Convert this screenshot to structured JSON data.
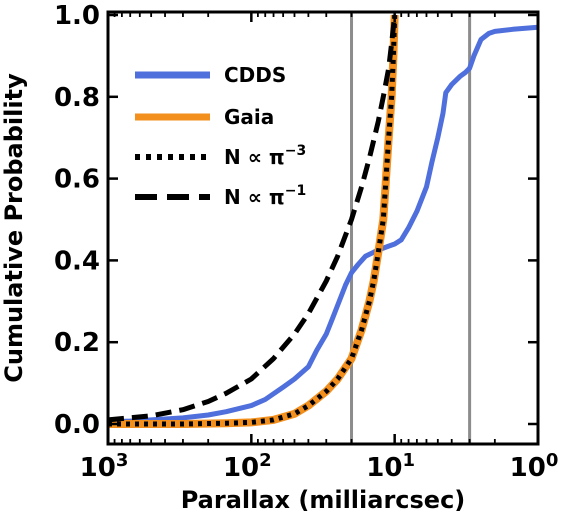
{
  "chart_data": {
    "type": "line",
    "xlabel": "Parallax (milliarcsec)",
    "ylabel": "Cumulative Probability",
    "x_scale": "log",
    "x_reversed": true,
    "xlim": [
      1000,
      1
    ],
    "ylim": [
      0,
      1.0
    ],
    "x_ticks": [
      {
        "value": 1000,
        "base": "10",
        "exp": "3"
      },
      {
        "value": 100,
        "base": "10",
        "exp": "2"
      },
      {
        "value": 10,
        "base": "10",
        "exp": "1"
      },
      {
        "value": 1,
        "base": "10",
        "exp": "0"
      }
    ],
    "y_ticks": [
      {
        "value": 0.0,
        "label": "0.0"
      },
      {
        "value": 0.2,
        "label": "0.2"
      },
      {
        "value": 0.4,
        "label": "0.4"
      },
      {
        "value": 0.6,
        "label": "0.6"
      },
      {
        "value": 0.8,
        "label": "0.8"
      },
      {
        "value": 1.0,
        "label": "1.0"
      }
    ],
    "vertical_lines": [
      20,
      3
    ],
    "legend_position": "upper-left",
    "series": [
      {
        "name": "CDDS",
        "color": "#4f6fdc",
        "style": "solid",
        "points": [
          [
            1000,
            0.005
          ],
          [
            700,
            0.007
          ],
          [
            500,
            0.01
          ],
          [
            300,
            0.015
          ],
          [
            200,
            0.022
          ],
          [
            150,
            0.03
          ],
          [
            100,
            0.045
          ],
          [
            80,
            0.06
          ],
          [
            60,
            0.09
          ],
          [
            50,
            0.11
          ],
          [
            40,
            0.14
          ],
          [
            35,
            0.18
          ],
          [
            30,
            0.22
          ],
          [
            27,
            0.26
          ],
          [
            25,
            0.29
          ],
          [
            22,
            0.34
          ],
          [
            20,
            0.37
          ],
          [
            18,
            0.39
          ],
          [
            16,
            0.41
          ],
          [
            14,
            0.42
          ],
          [
            12,
            0.43
          ],
          [
            11,
            0.435
          ],
          [
            10,
            0.44
          ],
          [
            9,
            0.45
          ],
          [
            8,
            0.48
          ],
          [
            7,
            0.52
          ],
          [
            6,
            0.58
          ],
          [
            5.5,
            0.64
          ],
          [
            5,
            0.7
          ],
          [
            4.6,
            0.76
          ],
          [
            4.4,
            0.81
          ],
          [
            4,
            0.83
          ],
          [
            3.5,
            0.85
          ],
          [
            3.2,
            0.86
          ],
          [
            3,
            0.87
          ],
          [
            2.8,
            0.9
          ],
          [
            2.5,
            0.94
          ],
          [
            2.2,
            0.955
          ],
          [
            2,
            0.96
          ],
          [
            1.5,
            0.965
          ],
          [
            1,
            0.97
          ]
        ]
      },
      {
        "name": "Gaia",
        "color": "#f28f1d",
        "style": "solid",
        "points": [
          [
            1000,
            0.0
          ],
          [
            300,
            0.0
          ],
          [
            150,
            0.002
          ],
          [
            100,
            0.004
          ],
          [
            70,
            0.01
          ],
          [
            50,
            0.025
          ],
          [
            40,
            0.045
          ],
          [
            30,
            0.08
          ],
          [
            25,
            0.11
          ],
          [
            20,
            0.16
          ],
          [
            17,
            0.23
          ],
          [
            15,
            0.3
          ],
          [
            14,
            0.35
          ],
          [
            13,
            0.42
          ],
          [
            12,
            0.5
          ],
          [
            11.5,
            0.6
          ],
          [
            11,
            0.7
          ],
          [
            10.5,
            0.8
          ],
          [
            10.2,
            0.9
          ],
          [
            10,
            1.0
          ]
        ]
      },
      {
        "name": "N ∝ π⁻³",
        "label_main": "N ∝ π",
        "label_exp": "−3",
        "color": "#000000",
        "style": "dotted",
        "points": [
          [
            1000,
            0.0
          ],
          [
            300,
            0.0
          ],
          [
            150,
            0.002
          ],
          [
            100,
            0.004
          ],
          [
            70,
            0.01
          ],
          [
            50,
            0.025
          ],
          [
            40,
            0.045
          ],
          [
            30,
            0.08
          ],
          [
            25,
            0.11
          ],
          [
            20,
            0.16
          ],
          [
            17,
            0.23
          ],
          [
            15,
            0.3
          ],
          [
            14,
            0.35
          ],
          [
            13,
            0.42
          ],
          [
            12,
            0.5
          ],
          [
            11.5,
            0.6
          ],
          [
            11,
            0.7
          ],
          [
            10.5,
            0.8
          ],
          [
            10.2,
            0.9
          ],
          [
            10,
            1.0
          ]
        ]
      },
      {
        "name": "N ∝ π⁻¹",
        "label_main": "N ∝ π",
        "label_exp": "−1",
        "color": "#000000",
        "style": "dashed",
        "points": [
          [
            1000,
            0.01
          ],
          [
            500,
            0.02
          ],
          [
            300,
            0.035
          ],
          [
            200,
            0.055
          ],
          [
            150,
            0.075
          ],
          [
            100,
            0.11
          ],
          [
            70,
            0.16
          ],
          [
            50,
            0.22
          ],
          [
            40,
            0.27
          ],
          [
            30,
            0.35
          ],
          [
            25,
            0.41
          ],
          [
            20,
            0.5
          ],
          [
            17,
            0.58
          ],
          [
            15,
            0.65
          ],
          [
            13,
            0.74
          ],
          [
            12,
            0.8
          ],
          [
            11,
            0.87
          ],
          [
            10.5,
            0.93
          ],
          [
            10,
            1.0
          ]
        ]
      }
    ]
  }
}
